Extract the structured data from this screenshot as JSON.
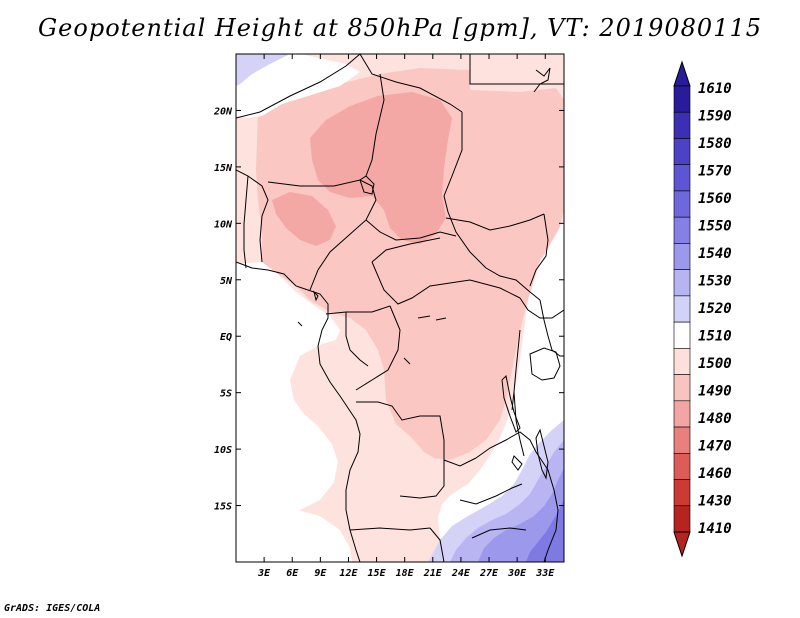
{
  "title": "Geopotential Height at 850hPa [gpm], VT: 2019080115",
  "credit": "GrADS: IGES/COLA",
  "map": {
    "lon_range": [
      0,
      35
    ],
    "lat_range": [
      -20,
      25
    ],
    "lat_ticks": [
      {
        "value": 20,
        "label": "20N"
      },
      {
        "value": 15,
        "label": "15N"
      },
      {
        "value": 10,
        "label": "10N"
      },
      {
        "value": 5,
        "label": "5N"
      },
      {
        "value": 0,
        "label": "EQ"
      },
      {
        "value": -5,
        "label": "5S"
      },
      {
        "value": -10,
        "label": "10S"
      },
      {
        "value": -15,
        "label": "15S"
      }
    ],
    "lon_ticks": [
      {
        "value": 3,
        "label": "3E"
      },
      {
        "value": 6,
        "label": "6E"
      },
      {
        "value": 9,
        "label": "9E"
      },
      {
        "value": 12,
        "label": "12E"
      },
      {
        "value": 15,
        "label": "15E"
      },
      {
        "value": 18,
        "label": "18E"
      },
      {
        "value": 21,
        "label": "21E"
      },
      {
        "value": 24,
        "label": "24E"
      },
      {
        "value": 27,
        "label": "27E"
      },
      {
        "value": 30,
        "label": "30E"
      },
      {
        "value": 33,
        "label": "33E"
      }
    ]
  },
  "colorbar": {
    "levels": [
      "1610",
      "1590",
      "1580",
      "1570",
      "1560",
      "1550",
      "1540",
      "1530",
      "1520",
      "1510",
      "1500",
      "1490",
      "1480",
      "1470",
      "1460",
      "1430",
      "1410"
    ],
    "colors": [
      "#2a1b9a",
      "#3b2fb4",
      "#4b42c6",
      "#5d55d3",
      "#6f68dc",
      "#8580e4",
      "#9c98ec",
      "#b7b4f2",
      "#d2d1f7",
      "#ffffff",
      "#fde0dc",
      "#f9c4c0",
      "#f2a5a2",
      "#e8807e",
      "#dc5c58",
      "#cc3a35",
      "#b52420"
    ],
    "top_color": "#2a1b9a",
    "bottom_color": "#b52420"
  },
  "colors": {
    "c1520": "#d4d2f7",
    "c1530": "#b8b5f2",
    "c1540": "#9c98ec",
    "c1550": "#7f79e2",
    "c1510": "#ffffff",
    "c1500": "#fde2de",
    "c1490": "#fac7c3",
    "c1480": "#f4a8a6",
    "border": "#000000"
  }
}
